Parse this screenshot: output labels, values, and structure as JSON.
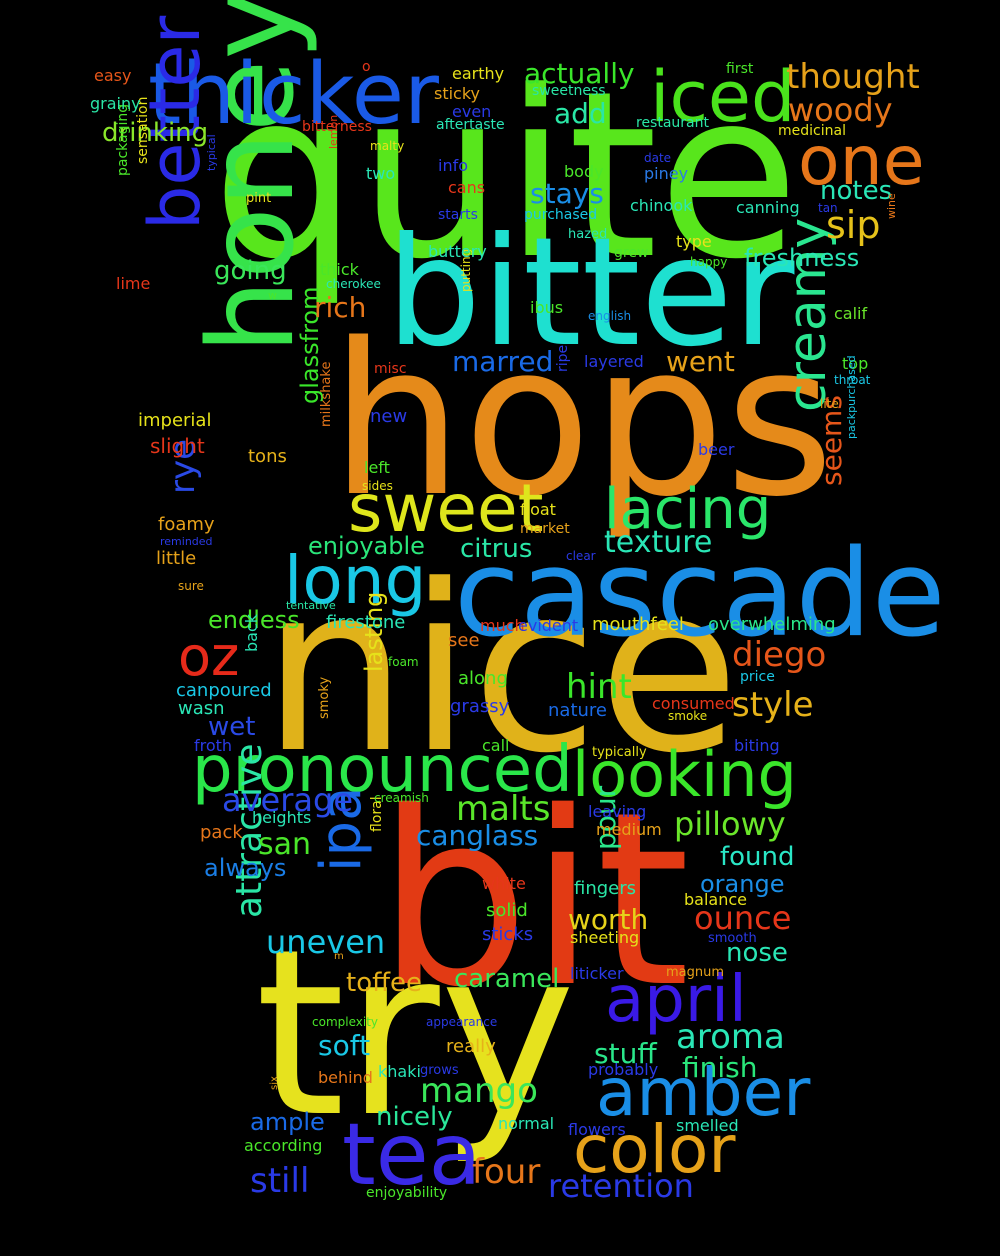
{
  "words": [
    {
      "id": "quite",
      "text": "quite",
      "color": "#58e61c"
    },
    {
      "id": "hops",
      "text": "hops",
      "color": "#e58a1a"
    },
    {
      "id": "nice",
      "text": "nice",
      "color": "#e0b21a"
    },
    {
      "id": "bit",
      "text": "bit",
      "color": "#e23a14"
    },
    {
      "id": "try",
      "text": "try",
      "color": "#e6e21e"
    },
    {
      "id": "bitter",
      "text": "bitter",
      "color": "#1ee0d0"
    },
    {
      "id": "cascade",
      "text": "cascade",
      "color": "#1a8ee6"
    },
    {
      "id": "honey",
      "text": "honey",
      "color": "#36e34a"
    },
    {
      "id": "thicker",
      "text": "thicker",
      "color": "#1a5ae6"
    },
    {
      "id": "iced",
      "text": "iced",
      "color": "#4ae31c"
    },
    {
      "id": "one",
      "text": "one",
      "color": "#e6761a"
    },
    {
      "id": "better",
      "text": "better",
      "color": "#2a2ae6"
    },
    {
      "id": "sweet",
      "text": "sweet",
      "color": "#dee61c"
    },
    {
      "id": "long",
      "text": "long",
      "color": "#1ac8e6"
    },
    {
      "id": "lacing",
      "text": "lacing",
      "color": "#2ae66a"
    },
    {
      "id": "creamy",
      "text": "creamy",
      "color": "#2ae690"
    },
    {
      "id": "pronounced",
      "text": "pronounced",
      "color": "#2ae64a"
    },
    {
      "id": "looking",
      "text": "looking",
      "color": "#3ae62a"
    },
    {
      "id": "oz",
      "text": "oz",
      "color": "#e62a1a"
    },
    {
      "id": "tea",
      "text": "tea",
      "color": "#3a2ae6"
    },
    {
      "id": "amber",
      "text": "amber",
      "color": "#1a8ee6"
    },
    {
      "id": "color",
      "text": "color",
      "color": "#e6a21a"
    },
    {
      "id": "april",
      "text": "april",
      "color": "#3a1ae6"
    },
    {
      "id": "ipa",
      "text": "ipa",
      "color": "#1a6ae6"
    },
    {
      "id": "attractive",
      "text": "attractive",
      "color": "#2ae6a6"
    },
    {
      "id": "thought",
      "text": "thought",
      "color": "#e6a21a"
    },
    {
      "id": "woody",
      "text": "woody",
      "color": "#e6761a"
    },
    {
      "id": "sip",
      "text": "sip",
      "color": "#e6c21a"
    },
    {
      "id": "notes",
      "text": "notes",
      "color": "#2ae6b6"
    },
    {
      "id": "freshness",
      "text": "freshness",
      "color": "#2ae6b6"
    },
    {
      "id": "texture",
      "text": "texture",
      "color": "#2ae6b6"
    },
    {
      "id": "seems",
      "text": "seems",
      "color": "#e6561a"
    },
    {
      "id": "diego",
      "text": "diego",
      "color": "#e6561a"
    },
    {
      "id": "style",
      "text": "style",
      "color": "#e6b21a"
    },
    {
      "id": "hint",
      "text": "hint",
      "color": "#3ae62a"
    },
    {
      "id": "pillowy",
      "text": "pillowy",
      "color": "#6ae62a"
    },
    {
      "id": "found",
      "text": "found",
      "color": "#2ae6c6"
    },
    {
      "id": "orange",
      "text": "orange",
      "color": "#1a8ee6"
    },
    {
      "id": "ounce",
      "text": "ounce",
      "color": "#e6361a"
    },
    {
      "id": "nose",
      "text": "nose",
      "color": "#2ae6b6"
    },
    {
      "id": "aroma",
      "text": "aroma",
      "color": "#2ae6b6"
    },
    {
      "id": "finish",
      "text": "finish",
      "color": "#2ae67a"
    },
    {
      "id": "stuff",
      "text": "stuff",
      "color": "#2ae68a"
    },
    {
      "id": "retention",
      "text": "retention",
      "color": "#2a3ae6"
    },
    {
      "id": "four",
      "text": "four",
      "color": "#e6761a"
    },
    {
      "id": "still",
      "text": "still",
      "color": "#2a3ae6"
    },
    {
      "id": "mango",
      "text": "mango",
      "color": "#3ae65a"
    },
    {
      "id": "nicely",
      "text": "nicely",
      "color": "#2ae69a"
    },
    {
      "id": "ample",
      "text": "ample",
      "color": "#1a6ae6"
    },
    {
      "id": "soft",
      "text": "soft",
      "color": "#1ac8e6"
    },
    {
      "id": "toffee",
      "text": "toffee",
      "color": "#e6b21a"
    },
    {
      "id": "caramel",
      "text": "caramel",
      "color": "#3ae65a"
    },
    {
      "id": "uneven",
      "text": "uneven",
      "color": "#1ac8e6"
    },
    {
      "id": "worth",
      "text": "worth",
      "color": "#e6d21a"
    },
    {
      "id": "canglass",
      "text": "canglass",
      "color": "#1a8ee6"
    },
    {
      "id": "san",
      "text": "san",
      "color": "#4ae62a"
    },
    {
      "id": "average",
      "text": "average",
      "color": "#2a4ae6"
    },
    {
      "id": "malts",
      "text": "malts",
      "color": "#5ae62a"
    },
    {
      "id": "pour",
      "text": "pour",
      "color": "#2ae68a"
    },
    {
      "id": "always",
      "text": "always",
      "color": "#1a7ee6"
    },
    {
      "id": "wet",
      "text": "wet",
      "color": "#2a4ae6"
    },
    {
      "id": "endless",
      "text": "endless",
      "color": "#4ae62a"
    },
    {
      "id": "enjoyable",
      "text": "enjoyable",
      "color": "#2ae67a"
    },
    {
      "id": "citrus",
      "text": "citrus",
      "color": "#2ae6a6"
    },
    {
      "id": "rye",
      "text": "rye",
      "color": "#2a4ae6"
    },
    {
      "id": "glassfrom",
      "text": "glassfrom",
      "color": "#3ae62a"
    },
    {
      "id": "lasting",
      "text": "lasting",
      "color": "#e6e21a"
    },
    {
      "id": "marred",
      "text": "marred",
      "color": "#1a6ae6"
    },
    {
      "id": "went",
      "text": "went",
      "color": "#e6a21a"
    },
    {
      "id": "rich",
      "text": "rich",
      "color": "#e6761a"
    },
    {
      "id": "going",
      "text": "going",
      "color": "#3ae65a"
    },
    {
      "id": "stays",
      "text": "stays",
      "color": "#1a8ee6"
    },
    {
      "id": "actually",
      "text": "actually",
      "color": "#3ae62a"
    },
    {
      "id": "add",
      "text": "add",
      "color": "#2ae6a6"
    },
    {
      "id": "drinking",
      "text": "drinking",
      "color": "#8ae62a"
    },
    {
      "id": "imperial",
      "text": "imperial",
      "color": "#e6e21a"
    },
    {
      "id": "slight",
      "text": "slight",
      "color": "#e6361a"
    },
    {
      "id": "tons",
      "text": "tons",
      "color": "#e6b21a"
    },
    {
      "id": "foamy",
      "text": "foamy",
      "color": "#e6a21a"
    },
    {
      "id": "little",
      "text": "little",
      "color": "#e6a21a"
    },
    {
      "id": "canpoured",
      "text": "canpoured",
      "color": "#1ac8e6"
    },
    {
      "id": "wasn",
      "text": "wasn",
      "color": "#2ae6b6"
    },
    {
      "id": "froth",
      "text": "froth",
      "color": "#2a3ae6"
    },
    {
      "id": "pack",
      "text": "pack",
      "color": "#e6761a"
    },
    {
      "id": "heights",
      "text": "heights",
      "color": "#2ae6b6"
    },
    {
      "id": "firestone",
      "text": "firestone",
      "color": "#2ae6b6"
    },
    {
      "id": "mouthfeel",
      "text": "mouthfeel",
      "color": "#e6e21a"
    },
    {
      "id": "overwhelming",
      "text": "overwhelming",
      "color": "#2ae68a"
    },
    {
      "id": "much",
      "text": "much",
      "color": "#e6361a"
    },
    {
      "id": "evident",
      "text": "evident",
      "color": "#2a3ae6"
    },
    {
      "id": "see",
      "text": "see",
      "color": "#e6761a"
    },
    {
      "id": "along",
      "text": "along",
      "color": "#4ae62a"
    },
    {
      "id": "grassy",
      "text": "grassy",
      "color": "#2a3ae6"
    },
    {
      "id": "nature",
      "text": "nature",
      "color": "#1a6ae6"
    },
    {
      "id": "call",
      "text": "call",
      "color": "#4ae62a"
    },
    {
      "id": "consumed",
      "text": "consumed",
      "color": "#e6361a"
    },
    {
      "id": "smoke",
      "text": "smoke",
      "color": "#e6e21a"
    },
    {
      "id": "price",
      "text": "price",
      "color": "#1ac8e6"
    },
    {
      "id": "biting",
      "text": "biting",
      "color": "#2a3ae6"
    },
    {
      "id": "typically",
      "text": "typically",
      "color": "#e6e21a"
    },
    {
      "id": "leaving",
      "text": "leaving",
      "color": "#2a3ae6"
    },
    {
      "id": "medium",
      "text": "medium",
      "color": "#e6a21a"
    },
    {
      "id": "white",
      "text": "white",
      "color": "#e6361a"
    },
    {
      "id": "fingers",
      "text": "fingers",
      "color": "#2ae6a6"
    },
    {
      "id": "balance",
      "text": "balance",
      "color": "#e6e21a"
    },
    {
      "id": "solid",
      "text": "solid",
      "color": "#4ae62a"
    },
    {
      "id": "sticks",
      "text": "sticks",
      "color": "#2a3ae6"
    },
    {
      "id": "sheeting",
      "text": "sheeting",
      "color": "#e6e21a"
    },
    {
      "id": "smooth",
      "text": "smooth",
      "color": "#2a3ae6"
    },
    {
      "id": "liticker",
      "text": "liticker",
      "color": "#2a3ae6"
    },
    {
      "id": "magnum",
      "text": "magnum",
      "color": "#e6a21a"
    },
    {
      "id": "complexity",
      "text": "complexity",
      "color": "#4ae62a"
    },
    {
      "id": "appearance",
      "text": "appearance",
      "color": "#2a3ae6"
    },
    {
      "id": "really",
      "text": "really",
      "color": "#e6b21a"
    },
    {
      "id": "khaki",
      "text": "khaki",
      "color": "#2ae6b6"
    },
    {
      "id": "grows",
      "text": "grows",
      "color": "#2a3ae6"
    },
    {
      "id": "probably",
      "text": "probably",
      "color": "#2a3ae6"
    },
    {
      "id": "behind",
      "text": "behind",
      "color": "#e6761a"
    },
    {
      "id": "according",
      "text": "according",
      "color": "#4ae62a"
    },
    {
      "id": "normal",
      "text": "normal",
      "color": "#2ae6b6"
    },
    {
      "id": "flowers",
      "text": "flowers",
      "color": "#2a3ae6"
    },
    {
      "id": "smelled",
      "text": "smelled",
      "color": "#2ae6b6"
    },
    {
      "id": "enjoyability",
      "text": "enjoyability",
      "color": "#4ae62a"
    },
    {
      "id": "six",
      "text": "six",
      "color": "#e6a21a"
    },
    {
      "id": "m",
      "text": "m",
      "color": "#e6a21a"
    },
    {
      "id": "floral",
      "text": "floral",
      "color": "#e6e21a"
    },
    {
      "id": "creamish",
      "text": "creamish",
      "color": "#4ae62a"
    },
    {
      "id": "smoky",
      "text": "smoky",
      "color": "#e6a21a"
    },
    {
      "id": "back",
      "text": "back",
      "color": "#2ae6b6"
    },
    {
      "id": "foam",
      "text": "foam",
      "color": "#4ae62a"
    },
    {
      "id": "clear",
      "text": "clear",
      "color": "#2a3ae6"
    },
    {
      "id": "tentative",
      "text": "tentative",
      "color": "#2ae6a6"
    },
    {
      "id": "sure",
      "text": "sure",
      "color": "#e6a21a"
    },
    {
      "id": "reminded",
      "text": "reminded",
      "color": "#2a3ae6"
    },
    {
      "id": "market",
      "text": "market",
      "color": "#e6a21a"
    },
    {
      "id": "float",
      "text": "float",
      "color": "#e6e21a"
    },
    {
      "id": "left",
      "text": "left",
      "color": "#4ae62a"
    },
    {
      "id": "sides",
      "text": "sides",
      "color": "#e6e21a"
    },
    {
      "id": "milkshake",
      "text": "milkshake",
      "color": "#e6761a"
    },
    {
      "id": "new",
      "text": "new",
      "color": "#2a3ae6"
    },
    {
      "id": "beer",
      "text": "beer",
      "color": "#2a3ae6"
    },
    {
      "id": "misc",
      "text": "misc",
      "color": "#e6361a"
    },
    {
      "id": "ripe",
      "text": "ripe",
      "color": "#2a3ae6"
    },
    {
      "id": "layered",
      "text": "layered",
      "color": "#2a3ae6"
    },
    {
      "id": "ibus",
      "text": "ibus",
      "color": "#4ae62a"
    },
    {
      "id": "english",
      "text": "english",
      "color": "#1a8ee6"
    },
    {
      "id": "putting",
      "text": "putting",
      "color": "#e6e21a"
    },
    {
      "id": "cherokee",
      "text": "cherokee",
      "color": "#2ae6b6"
    },
    {
      "id": "thick",
      "text": "thick",
      "color": "#4ae62a"
    },
    {
      "id": "w",
      "text": "w",
      "color": "#4ae62a"
    },
    {
      "id": "lime",
      "text": "lime",
      "color": "#e6361a"
    },
    {
      "id": "pint",
      "text": "pint",
      "color": "#e6e21a"
    },
    {
      "id": "typical",
      "text": "typical",
      "color": "#2a3ae6"
    },
    {
      "id": "packaging",
      "text": "packaging",
      "color": "#4ae62a"
    },
    {
      "id": "sensation",
      "text": "sensation",
      "color": "#e6e21a"
    },
    {
      "id": "grainy",
      "text": "grainy",
      "color": "#2ae6a6"
    },
    {
      "id": "easy",
      "text": "easy",
      "color": "#e6561a"
    },
    {
      "id": "o",
      "text": "o",
      "color": "#e6361a"
    },
    {
      "id": "earthy",
      "text": "earthy",
      "color": "#e6e21a"
    },
    {
      "id": "sticky",
      "text": "sticky",
      "color": "#e6a21a"
    },
    {
      "id": "sweetness",
      "text": "sweetness",
      "color": "#2ae6a6"
    },
    {
      "id": "even",
      "text": "even",
      "color": "#2a3ae6"
    },
    {
      "id": "bitterness",
      "text": "bitterness",
      "color": "#e6361a"
    },
    {
      "id": "aftertaste",
      "text": "aftertaste",
      "color": "#2ae6b6"
    },
    {
      "id": "malty",
      "text": "malty",
      "color": "#e6e21a"
    },
    {
      "id": "lemon",
      "text": "lemon",
      "color": "#e6361a"
    },
    {
      "id": "info",
      "text": "info",
      "color": "#2a3ae6"
    },
    {
      "id": "two",
      "text": "two",
      "color": "#2ae6b6"
    },
    {
      "id": "cans",
      "text": "cans",
      "color": "#e6361a"
    },
    {
      "id": "starts",
      "text": "starts",
      "color": "#2a3ae6"
    },
    {
      "id": "body",
      "text": "body",
      "color": "#4ae62a"
    },
    {
      "id": "purchased",
      "text": "purchased",
      "color": "#1ac8e6"
    },
    {
      "id": "hazed",
      "text": "hazed",
      "color": "#2ae6b6"
    },
    {
      "id": "buttery",
      "text": "buttery",
      "color": "#2ae6b6"
    },
    {
      "id": "grew",
      "text": "grew",
      "color": "#4ae62a"
    },
    {
      "id": "first",
      "text": "first",
      "color": "#4ae62a"
    },
    {
      "id": "restaurant",
      "text": "restaurant",
      "color": "#2ae6a6"
    },
    {
      "id": "medicinal",
      "text": "medicinal",
      "color": "#e6e21a"
    },
    {
      "id": "date",
      "text": "date",
      "color": "#2a3ae6"
    },
    {
      "id": "piney",
      "text": "piney",
      "color": "#2a7ae6"
    },
    {
      "id": "chinook",
      "text": "chinook",
      "color": "#2ae6b6"
    },
    {
      "id": "canning",
      "text": "canning",
      "color": "#2ae6b6"
    },
    {
      "id": "tan",
      "text": "tan",
      "color": "#2a3ae6"
    },
    {
      "id": "wine",
      "text": "wine",
      "color": "#e6761a"
    },
    {
      "id": "type",
      "text": "type",
      "color": "#e6e21a"
    },
    {
      "id": "happy",
      "text": "happy",
      "color": "#4ae62a"
    },
    {
      "id": "calif",
      "text": "calif",
      "color": "#6ae62a"
    },
    {
      "id": "top",
      "text": "top",
      "color": "#4ae62a"
    },
    {
      "id": "throat",
      "text": "throat",
      "color": "#1ac8e6"
    },
    {
      "id": "lite",
      "text": "lite",
      "color": "#e6a21a"
    },
    {
      "id": "packpurchased",
      "text": "packpurchased",
      "color": "#1ac8e6"
    }
  ]
}
